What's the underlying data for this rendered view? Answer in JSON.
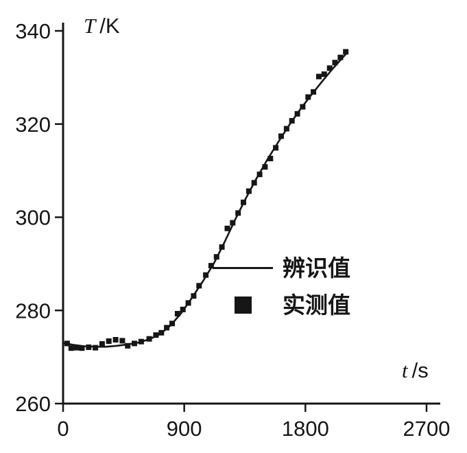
{
  "chart_data": {
    "type": "line+scatter",
    "title": "",
    "xlabel": "t /s",
    "ylabel": "T /K",
    "x_symbol": "t",
    "x_unit": "/s",
    "y_symbol": "T",
    "y_unit": "/K",
    "xlim": [
      0,
      2700
    ],
    "ylim": [
      260,
      340
    ],
    "xticks": [
      0,
      900,
      1800,
      2700
    ],
    "yticks": [
      260,
      280,
      300,
      320,
      340
    ],
    "grid": false,
    "legend_position": "inside-right-middle",
    "color": "#161616",
    "legend": [
      {
        "label": "辨识值",
        "marker": "line"
      },
      {
        "label": "实测值",
        "marker": "filled-square"
      }
    ],
    "series": [
      {
        "name": "辨识值",
        "type": "line",
        "points": [
          [
            0,
            273.0
          ],
          [
            80,
            272.6
          ],
          [
            160,
            272.3
          ],
          [
            240,
            272.2
          ],
          [
            320,
            272.2
          ],
          [
            400,
            272.4
          ],
          [
            480,
            272.7
          ],
          [
            560,
            273.1
          ],
          [
            640,
            273.8
          ],
          [
            720,
            274.9
          ],
          [
            800,
            276.8
          ],
          [
            880,
            279.5
          ],
          [
            960,
            282.8
          ],
          [
            1040,
            286.3
          ],
          [
            1120,
            290.1
          ],
          [
            1200,
            294.7
          ],
          [
            1280,
            299.6
          ],
          [
            1360,
            304.2
          ],
          [
            1440,
            308.5
          ],
          [
            1520,
            312.5
          ],
          [
            1600,
            316.2
          ],
          [
            1680,
            319.8
          ],
          [
            1760,
            323.1
          ],
          [
            1840,
            326.1
          ],
          [
            1920,
            329.0
          ],
          [
            2000,
            331.8
          ],
          [
            2100,
            335.0
          ]
        ]
      },
      {
        "name": "实测值",
        "type": "scatter",
        "points": [
          [
            30,
            272.9
          ],
          [
            60,
            271.9
          ],
          [
            100,
            272.0
          ],
          [
            140,
            271.9
          ],
          [
            190,
            272.1
          ],
          [
            240,
            272.0
          ],
          [
            290,
            272.8
          ],
          [
            340,
            273.4
          ],
          [
            390,
            273.7
          ],
          [
            440,
            273.5
          ],
          [
            480,
            272.4
          ],
          [
            530,
            272.9
          ],
          [
            580,
            273.3
          ],
          [
            640,
            273.9
          ],
          [
            690,
            274.7
          ],
          [
            730,
            275.2
          ],
          [
            770,
            276.3
          ],
          [
            810,
            277.2
          ],
          [
            850,
            279.3
          ],
          [
            890,
            280.2
          ],
          [
            930,
            281.6
          ],
          [
            970,
            283.1
          ],
          [
            1010,
            285.3
          ],
          [
            1060,
            287.6
          ],
          [
            1100,
            289.6
          ],
          [
            1140,
            291.5
          ],
          [
            1180,
            293.6
          ],
          [
            1220,
            297.6
          ],
          [
            1260,
            298.8
          ],
          [
            1300,
            300.9
          ],
          [
            1340,
            303.2
          ],
          [
            1380,
            305.6
          ],
          [
            1420,
            307.4
          ],
          [
            1460,
            309.2
          ],
          [
            1500,
            310.8
          ],
          [
            1540,
            312.6
          ],
          [
            1580,
            314.9
          ],
          [
            1620,
            317.4
          ],
          [
            1660,
            319.0
          ],
          [
            1700,
            320.7
          ],
          [
            1740,
            322.2
          ],
          [
            1780,
            323.7
          ],
          [
            1820,
            325.8
          ],
          [
            1860,
            326.9
          ],
          [
            1900,
            330.2
          ],
          [
            1940,
            330.7
          ],
          [
            1980,
            332.0
          ],
          [
            2020,
            333.2
          ],
          [
            2060,
            334.3
          ],
          [
            2100,
            335.5
          ]
        ]
      }
    ]
  }
}
